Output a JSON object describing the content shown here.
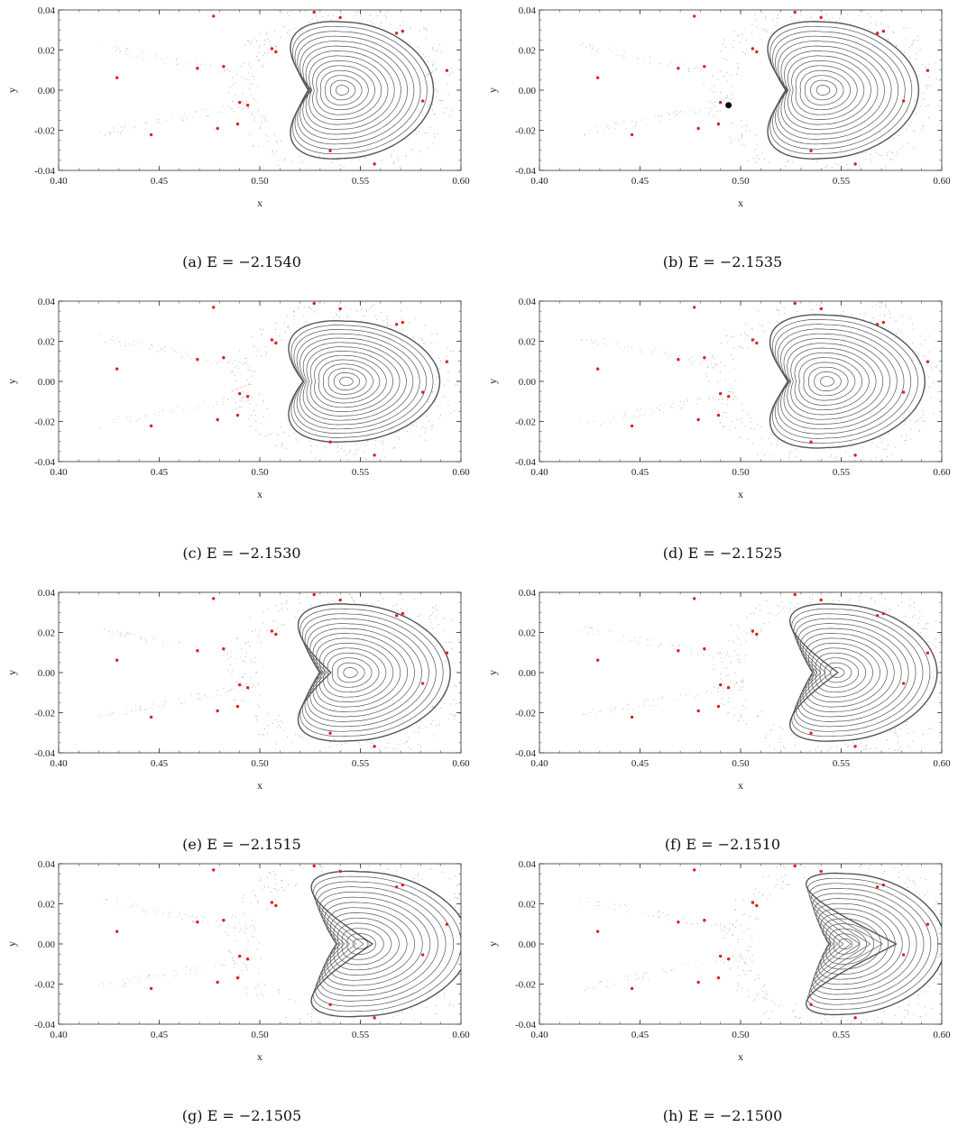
{
  "chart_data": [
    {
      "type": "scatter",
      "caption": "(a)",
      "energy": "E = −2.1540",
      "xlabel": "x",
      "ylabel": "y",
      "xlim": [
        0.4,
        0.6
      ],
      "ylim": [
        -0.04,
        0.04
      ],
      "xticks": [
        "0.40",
        "0.45",
        "0.50",
        "0.55",
        "0.60"
      ],
      "yticks": [
        "0.04",
        "0.02",
        "0.00",
        "-0.02",
        "-0.04"
      ],
      "island": {
        "center": [
          0.541,
          0.0
        ],
        "rx": 0.042,
        "ry": 0.034,
        "notch": 0.03
      },
      "marker": null
    },
    {
      "type": "scatter",
      "caption": "(b)",
      "energy": "E = −2.1535",
      "xlabel": "x",
      "ylabel": "y",
      "xlim": [
        0.4,
        0.6
      ],
      "ylim": [
        -0.04,
        0.04
      ],
      "xticks": [
        "0.40",
        "0.45",
        "0.50",
        "0.55",
        "0.60"
      ],
      "yticks": [
        "0.04",
        "0.02",
        "0.00",
        "-0.02",
        "-0.04"
      ],
      "island": {
        "center": [
          0.541,
          0.0
        ],
        "rx": 0.044,
        "ry": 0.034,
        "notch": 0.03
      },
      "marker": [
        0.494,
        -0.0075
      ]
    },
    {
      "type": "scatter",
      "caption": "(c)",
      "energy": "E = −2.1530",
      "xlabel": "x",
      "ylabel": "y",
      "xlim": [
        0.4,
        0.6
      ],
      "ylim": [
        -0.04,
        0.04
      ],
      "xticks": [
        "0.40",
        "0.45",
        "0.50",
        "0.55",
        "0.60"
      ],
      "yticks": [
        "0.04",
        "0.02",
        "0.00",
        "-0.02",
        "-0.04"
      ],
      "island": {
        "center": [
          0.543,
          0.0
        ],
        "rx": 0.043,
        "ry": 0.03,
        "notch": 0.025
      },
      "marker": null
    },
    {
      "type": "scatter",
      "caption": "(d)",
      "energy": "E = −2.1525",
      "xlabel": "x",
      "ylabel": "y",
      "xlim": [
        0.4,
        0.6
      ],
      "ylim": [
        -0.04,
        0.04
      ],
      "xticks": [
        "0.40",
        "0.45",
        "0.50",
        "0.55",
        "0.60"
      ],
      "yticks": [
        "0.04",
        "0.02",
        "0.00",
        "-0.02",
        "-0.04"
      ],
      "island": {
        "center": [
          0.543,
          0.0
        ],
        "rx": 0.045,
        "ry": 0.033,
        "notch": 0.03
      },
      "marker": null
    },
    {
      "type": "scatter",
      "caption": "(e)",
      "energy": "E = −2.1515",
      "xlabel": "x",
      "ylabel": "y",
      "xlim": [
        0.4,
        0.6
      ],
      "ylim": [
        -0.04,
        0.04
      ],
      "xticks": [
        "0.40",
        "0.45",
        "0.50",
        "0.55",
        "0.60"
      ],
      "yticks": [
        "0.04",
        "0.02",
        "0.00",
        "-0.02",
        "-0.04"
      ],
      "island": {
        "center": [
          0.545,
          0.0
        ],
        "rx": 0.046,
        "ry": 0.034,
        "notch": 0.04
      },
      "marker": null
    },
    {
      "type": "scatter",
      "caption": "(f)",
      "energy": "E = −2.1510",
      "xlabel": "x",
      "ylabel": "y",
      "xlim": [
        0.4,
        0.6
      ],
      "ylim": [
        -0.04,
        0.04
      ],
      "xticks": [
        "0.40",
        "0.45",
        "0.50",
        "0.55",
        "0.60"
      ],
      "yticks": [
        "0.04",
        "0.02",
        "0.00",
        "-0.02",
        "-0.04"
      ],
      "island": {
        "center": [
          0.548,
          0.0
        ],
        "rx": 0.046,
        "ry": 0.034,
        "notch": 0.05
      },
      "marker": null
    },
    {
      "type": "scatter",
      "caption": "(g)",
      "energy": "E = −2.1505",
      "xlabel": "x",
      "ylabel": "y",
      "xlim": [
        0.4,
        0.6
      ],
      "ylim": [
        -0.04,
        0.04
      ],
      "xticks": [
        "0.40",
        "0.45",
        "0.50",
        "0.55",
        "0.60"
      ],
      "yticks": [
        "0.04",
        "0.02",
        "0.00",
        "-0.02",
        "-0.04"
      ],
      "island": {
        "center": [
          0.55,
          0.0
        ],
        "rx": 0.05,
        "ry": 0.036,
        "notch": 0.06
      },
      "marker": null
    },
    {
      "type": "scatter",
      "caption": "(h)",
      "energy": "E = −2.1500",
      "xlabel": "x",
      "ylabel": "y",
      "xlim": [
        0.4,
        0.6
      ],
      "ylim": [
        -0.04,
        0.04
      ],
      "xticks": [
        "0.40",
        "0.45",
        "0.50",
        "0.55",
        "0.60"
      ],
      "yticks": [
        "0.04",
        "0.02",
        "0.00",
        "-0.02",
        "-0.04"
      ],
      "island": {
        "center": [
          0.552,
          0.0
        ],
        "rx": 0.046,
        "ry": 0.035,
        "notch": 0.075
      },
      "marker": null
    }
  ],
  "red_points": [
    [
      0.429,
      0.0062
    ],
    [
      0.446,
      -0.0222
    ],
    [
      0.469,
      0.0109
    ],
    [
      0.477,
      0.0369
    ],
    [
      0.479,
      -0.0191
    ],
    [
      0.482,
      0.0118
    ],
    [
      0.489,
      -0.0169
    ],
    [
      0.49,
      -0.0061
    ],
    [
      0.494,
      -0.0075
    ],
    [
      0.506,
      0.0207
    ],
    [
      0.508,
      0.0191
    ],
    [
      0.527,
      0.0389
    ],
    [
      0.535,
      -0.0302
    ],
    [
      0.54,
      0.0362
    ],
    [
      0.557,
      -0.0368
    ],
    [
      0.568,
      0.0284
    ],
    [
      0.571,
      0.0294
    ],
    [
      0.581,
      -0.0054
    ],
    [
      0.593,
      0.0098
    ]
  ],
  "colors": {
    "curve": "#555555",
    "red": "#e02020",
    "marker": "#000000",
    "scatter": "#bbbbbb"
  }
}
